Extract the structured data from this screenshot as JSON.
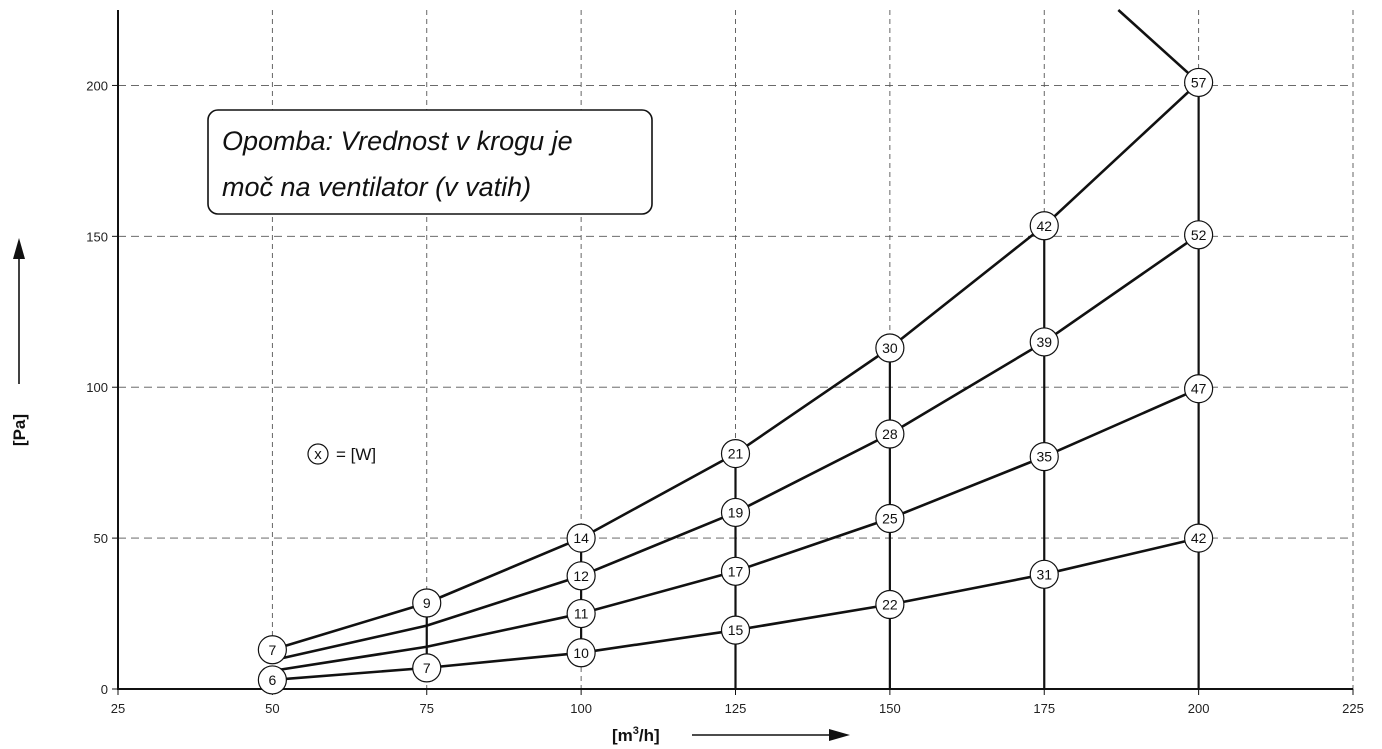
{
  "chart_data": {
    "type": "line",
    "title": "",
    "xlabel_main": "[m",
    "xlabel_sup": "3",
    "xlabel_tail": "/h]",
    "ylabel": "[Pa]",
    "xlim": [
      25,
      225
    ],
    "ylim": [
      0,
      225
    ],
    "x_ticks": [
      25,
      50,
      75,
      100,
      125,
      150,
      175,
      200,
      225
    ],
    "y_ticks": [
      0,
      50,
      100,
      150,
      200
    ],
    "grid": true,
    "note_line1": "Opomba: Vrednost v krogu je",
    "note_line2": "moč na ventilator (v vatih)",
    "legend_symbol": "x",
    "legend_text": "= [W]",
    "series": [
      {
        "points": [
          {
            "x": 50,
            "y": 3,
            "w": "6"
          },
          {
            "x": 75,
            "y": 7,
            "w": "7"
          },
          {
            "x": 100,
            "y": 12,
            "w": "10"
          },
          {
            "x": 125,
            "y": 19.5,
            "w": "15"
          },
          {
            "x": 150,
            "y": 28,
            "w": "22"
          },
          {
            "x": 175,
            "y": 38,
            "w": "31"
          },
          {
            "x": 200,
            "y": 50,
            "w": "42"
          }
        ]
      },
      {
        "points": [
          {
            "x": 50,
            "y": 6,
            "w": ""
          },
          {
            "x": 75,
            "y": 14,
            "w": ""
          },
          {
            "x": 100,
            "y": 25,
            "w": "11"
          },
          {
            "x": 125,
            "y": 39,
            "w": "17"
          },
          {
            "x": 150,
            "y": 56.5,
            "w": "25"
          },
          {
            "x": 175,
            "y": 77,
            "w": "35"
          },
          {
            "x": 200,
            "y": 99.5,
            "w": "47"
          }
        ]
      },
      {
        "points": [
          {
            "x": 50,
            "y": 9.5,
            "w": ""
          },
          {
            "x": 75,
            "y": 21,
            "w": ""
          },
          {
            "x": 100,
            "y": 37.5,
            "w": "12"
          },
          {
            "x": 125,
            "y": 58.5,
            "w": "19"
          },
          {
            "x": 150,
            "y": 84.5,
            "w": "28"
          },
          {
            "x": 175,
            "y": 115,
            "w": "39"
          },
          {
            "x": 200,
            "y": 150.5,
            "w": "52"
          }
        ]
      },
      {
        "points": [
          {
            "x": 50,
            "y": 13,
            "w": "7"
          },
          {
            "x": 75,
            "y": 28.5,
            "w": "9"
          },
          {
            "x": 100,
            "y": 50,
            "w": "14"
          },
          {
            "x": 125,
            "y": 78,
            "w": "21"
          },
          {
            "x": 150,
            "y": 113,
            "w": "30"
          },
          {
            "x": 175,
            "y": 153.5,
            "w": "42"
          },
          {
            "x": 200,
            "y": 201,
            "w": "57"
          }
        ]
      },
      {
        "points": [
          {
            "x": 187,
            "y": 225,
            "w": ""
          },
          {
            "x": 200,
            "y": 201,
            "w": ""
          }
        ]
      }
    ],
    "verticals": [
      {
        "x": 75,
        "y0": 7,
        "y1": 28.5
      },
      {
        "x": 100,
        "y0": 12,
        "y1": 50
      },
      {
        "x": 125,
        "y0": 0,
        "y1": 78
      },
      {
        "x": 150,
        "y0": 0,
        "y1": 113
      },
      {
        "x": 175,
        "y0": 0,
        "y1": 153.5
      },
      {
        "x": 200,
        "y0": 0,
        "y1": 201
      }
    ]
  }
}
